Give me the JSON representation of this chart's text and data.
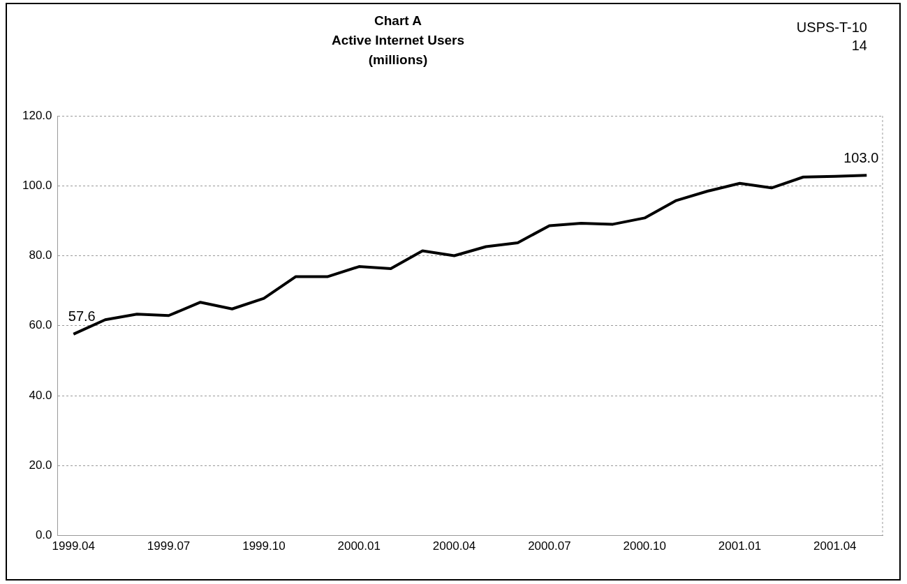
{
  "chart_data": {
    "type": "line",
    "title": "Chart A\nActive Internet Users\n(millions)",
    "annotations": [
      "USPS-T-10\n14"
    ],
    "categories": [
      "1999.04",
      null,
      null,
      "1999.07",
      null,
      null,
      "1999.10",
      null,
      null,
      "2000.01",
      null,
      null,
      "2000.04",
      null,
      null,
      "2000.07",
      null,
      null,
      "2000.10",
      null,
      null,
      "2001.01",
      null,
      null,
      "2001.04",
      null
    ],
    "series": [
      {
        "color": "#000000",
        "values": [
          57.6,
          61.7,
          63.3,
          62.9,
          66.7,
          64.8,
          67.8,
          74.0,
          74.0,
          76.9,
          76.3,
          81.4,
          80.0,
          82.6,
          83.7,
          88.6,
          89.3,
          89.0,
          90.8,
          95.8,
          98.5,
          100.7,
          99.4,
          102.5,
          102.7,
          103.0
        ],
        "value_labels": [
          "57.6",
          null,
          null,
          null,
          null,
          null,
          null,
          null,
          null,
          null,
          null,
          null,
          null,
          null,
          null,
          null,
          null,
          null,
          null,
          null,
          null,
          null,
          null,
          null,
          null,
          "103.0"
        ]
      }
    ],
    "ylim": [
      0,
      120
    ],
    "yticks": [
      {
        "value": 0,
        "label": "0.0"
      },
      {
        "value": 20,
        "label": "20.0"
      },
      {
        "value": 40,
        "label": "40.0"
      },
      {
        "value": 60,
        "label": "60.0"
      },
      {
        "value": 80,
        "label": "80.0"
      },
      {
        "value": 100,
        "label": "100.0"
      },
      {
        "value": 120,
        "label": "120.0"
      }
    ],
    "grid": "y",
    "legend": false,
    "marker": "none",
    "line_style": "solid"
  }
}
